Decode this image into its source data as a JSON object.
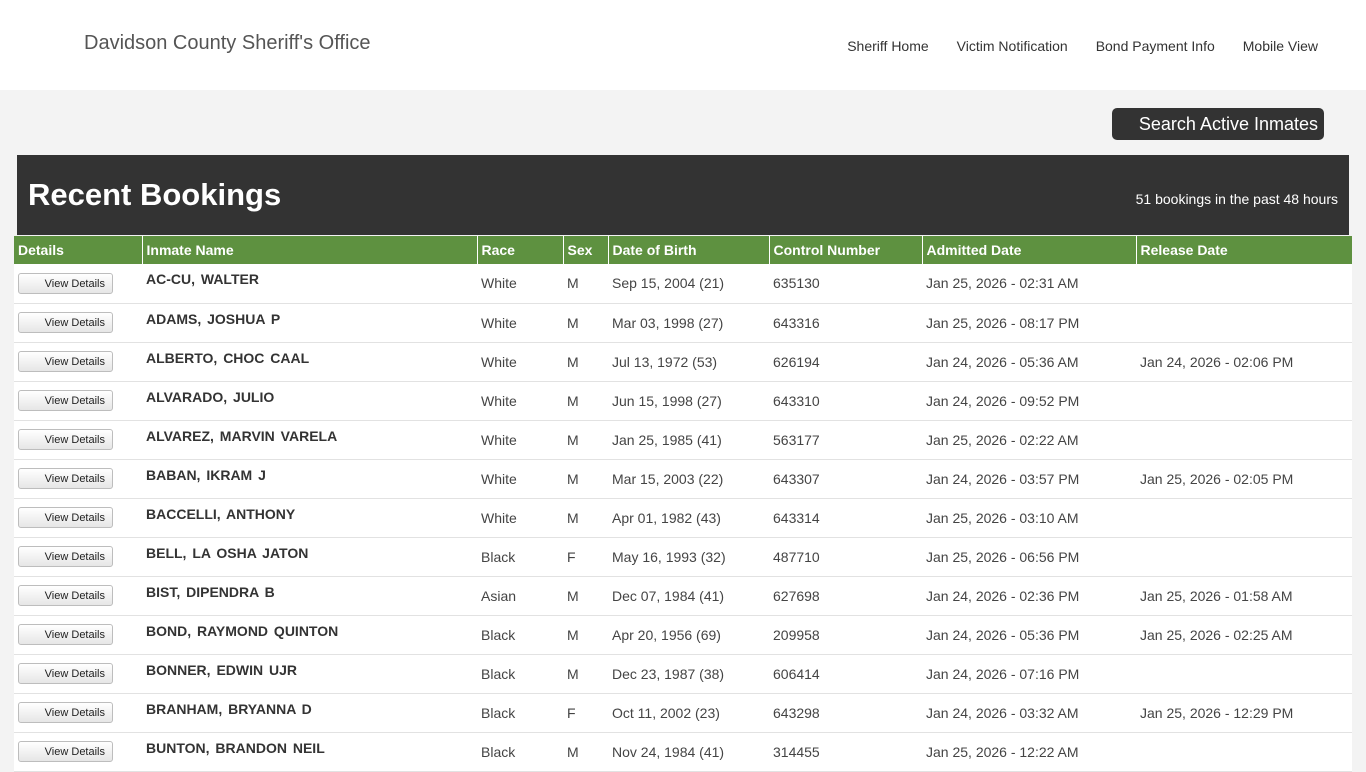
{
  "header": {
    "site_title": "Davidson County Sheriff's Office",
    "nav": [
      "Sheriff Home",
      "Victim Notification",
      "Bond Payment Info",
      "Mobile View"
    ]
  },
  "search_button": "Search Active Inmates",
  "panel": {
    "title": "Recent Bookings",
    "count_text": "51 bookings in the past 48 hours"
  },
  "table": {
    "columns": [
      "Details",
      "Inmate Name",
      "Race",
      "Sex",
      "Date of Birth",
      "Control Number",
      "Admitted Date",
      "Release Date"
    ],
    "view_label": "View Details",
    "rows": [
      {
        "name": "AC-CU, WALTER",
        "race": "White",
        "sex": "M",
        "dob": "Sep 15, 2004 (21)",
        "control": "635130",
        "admitted": "Jan 25, 2026 - 02:31 AM",
        "release": ""
      },
      {
        "name": "ADAMS, JOSHUA  P",
        "race": "White",
        "sex": "M",
        "dob": "Mar 03, 1998 (27)",
        "control": "643316",
        "admitted": "Jan 25, 2026 - 08:17 PM",
        "release": ""
      },
      {
        "name": "ALBERTO, CHOC  CAAL",
        "race": "White",
        "sex": "M",
        "dob": "Jul 13, 1972 (53)",
        "control": "626194",
        "admitted": "Jan 24, 2026 - 05:36 AM",
        "release": "Jan 24, 2026 - 02:06 PM"
      },
      {
        "name": "ALVARADO, JULIO",
        "race": "White",
        "sex": "M",
        "dob": "Jun 15, 1998 (27)",
        "control": "643310",
        "admitted": "Jan 24, 2026 - 09:52 PM",
        "release": ""
      },
      {
        "name": "ALVAREZ, MARVIN  VARELA",
        "race": "White",
        "sex": "M",
        "dob": "Jan 25, 1985 (41)",
        "control": "563177",
        "admitted": "Jan 25, 2026 - 02:22 AM",
        "release": ""
      },
      {
        "name": "BABAN, IKRAM  J",
        "race": "White",
        "sex": "M",
        "dob": "Mar 15, 2003 (22)",
        "control": "643307",
        "admitted": "Jan 24, 2026 - 03:57 PM",
        "release": "Jan 25, 2026 - 02:05 PM"
      },
      {
        "name": "BACCELLI, ANTHONY",
        "race": "White",
        "sex": "M",
        "dob": "Apr 01, 1982 (43)",
        "control": "643314",
        "admitted": "Jan 25, 2026 - 03:10 AM",
        "release": ""
      },
      {
        "name": "BELL, LA OSHA  JATON",
        "race": "Black",
        "sex": "F",
        "dob": "May 16, 1993 (32)",
        "control": "487710",
        "admitted": "Jan 25, 2026 - 06:56 PM",
        "release": ""
      },
      {
        "name": "BIST, DIPENDRA  B",
        "race": "Asian",
        "sex": "M",
        "dob": "Dec 07, 1984 (41)",
        "control": "627698",
        "admitted": "Jan 24, 2026 - 02:36 PM",
        "release": "Jan 25, 2026 - 01:58 AM"
      },
      {
        "name": "BOND, RAYMOND  QUINTON",
        "race": "Black",
        "sex": "M",
        "dob": "Apr 20, 1956 (69)",
        "control": "209958",
        "admitted": "Jan 24, 2026 - 05:36 PM",
        "release": "Jan 25, 2026 - 02:25 AM"
      },
      {
        "name": "BONNER, EDWIN  UJR",
        "race": "Black",
        "sex": "M",
        "dob": "Dec 23, 1987 (38)",
        "control": "606414",
        "admitted": "Jan 24, 2026 - 07:16 PM",
        "release": ""
      },
      {
        "name": "BRANHAM, BRYANNA  D",
        "race": "Black",
        "sex": "F",
        "dob": "Oct 11, 2002 (23)",
        "control": "643298",
        "admitted": "Jan 24, 2026 - 03:32 AM",
        "release": "Jan 25, 2026 - 12:29 PM"
      },
      {
        "name": "BUNTON, BRANDON  NEIL",
        "race": "Black",
        "sex": "M",
        "dob": "Nov 24, 1984 (41)",
        "control": "314455",
        "admitted": "Jan 25, 2026 - 12:22 AM",
        "release": ""
      }
    ]
  }
}
